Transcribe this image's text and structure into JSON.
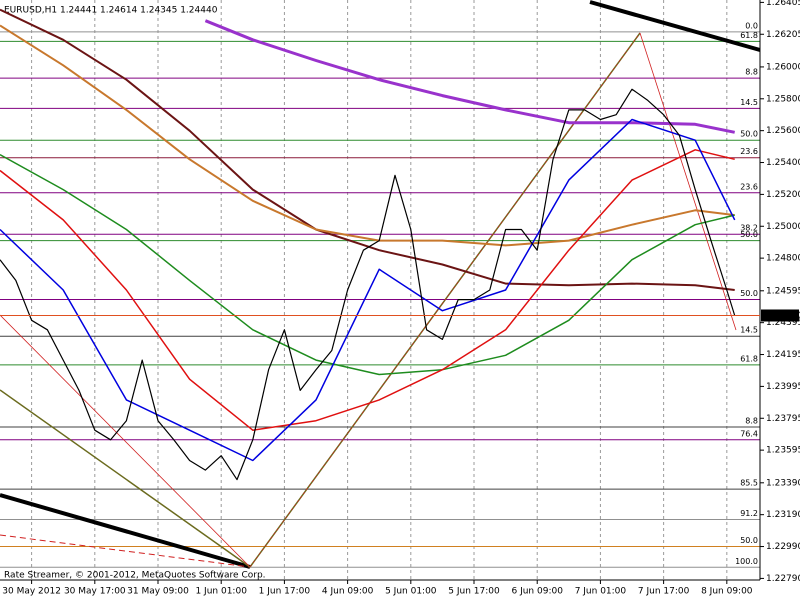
{
  "chart_data": {
    "type": "line",
    "title": "EURUSD,H1  1.24441 1.24614 1.24345 1.24440",
    "footer": "Rate Streamer, © 2001-2012, MetaQuotes Software Corp.",
    "xlim": [
      0,
      192.4
    ],
    "ylim": [
      1.2278,
      1.2642
    ],
    "grid": true,
    "xticks": [
      {
        "value": 8,
        "label": "30 May 2012"
      },
      {
        "value": 24,
        "label": "30 May 17:00"
      },
      {
        "value": 40,
        "label": "31 May 09:00"
      },
      {
        "value": 56,
        "label": "1 Jun 01:00"
      },
      {
        "value": 72,
        "label": "1 Jun 17:00"
      },
      {
        "value": 88,
        "label": "4 Jun 09:00"
      },
      {
        "value": 104,
        "label": "5 Jun 01:00"
      },
      {
        "value": 120,
        "label": "5 Jun 17:00"
      },
      {
        "value": 136,
        "label": "6 Jun 09:00"
      },
      {
        "value": 152,
        "label": "7 Jun 01:00"
      },
      {
        "value": 168,
        "label": "7 Jun 17:00"
      },
      {
        "value": 184,
        "label": "8 Jun 09:00"
      }
    ],
    "yticks": [
      1.26405,
      1.26205,
      {
        "value": 1.26,
        "label": "1.26000"
      },
      {
        "value": 1.258,
        "label": "1.25800"
      },
      {
        "value": 1.256,
        "label": "1.25600"
      },
      {
        "value": 1.254,
        "label": "1.25400"
      },
      {
        "value": 1.252,
        "label": "1.25200"
      },
      {
        "value": 1.25,
        "label": "1.25000"
      },
      {
        "value": 1.248,
        "label": "1.24800"
      },
      1.24595,
      1.24395,
      1.24195,
      1.23995,
      1.23795,
      1.23595,
      {
        "value": 1.2339,
        "label": "1.23390"
      },
      {
        "value": 1.2319,
        "label": "1.23190"
      },
      {
        "value": 1.2299,
        "label": "1.22990"
      },
      {
        "value": 1.2279,
        "label": "1.22790"
      }
    ],
    "last": {
      "value": 1.2444,
      "label": "1.24440"
    },
    "levels": [
      {
        "label": "0.0",
        "value": 1.2622,
        "color": "#909090"
      },
      {
        "label": "61.8",
        "value": 1.2616,
        "color": "#2e8b2e"
      },
      {
        "label": "8.8",
        "value": 1.2593,
        "color": "#800080"
      },
      {
        "label": "14.5",
        "value": 1.2574,
        "color": "#800080"
      },
      {
        "label": "50.0",
        "value": 1.2554,
        "color": "#2e8b2e"
      },
      {
        "label": "23.6",
        "value": 1.2543,
        "color": "#8b1a3a"
      },
      {
        "label": "23.6",
        "value": 1.2521,
        "color": "#800080"
      },
      {
        "label": "38.2",
        "value": 1.2495,
        "color": "#800080"
      },
      {
        "label": "50.0",
        "value": 1.2491,
        "color": "#2e8b2e"
      },
      {
        "label": "50.0",
        "value": 1.2454,
        "color": "#800080"
      },
      {
        "label": "14.5",
        "value": 1.2431,
        "color": "#404040"
      },
      {
        "label": "61.8",
        "value": 1.2413,
        "color": "#2e8b2e"
      },
      {
        "label": "8.8",
        "value": 1.2374,
        "color": "#404040"
      },
      {
        "label": "76.4",
        "value": 1.2366,
        "color": "#800080"
      },
      {
        "label": "85.5",
        "value": 1.2335,
        "color": "#404040"
      },
      {
        "label": "91.2",
        "value": 1.2316,
        "color": "#909090"
      },
      {
        "label": "50.0",
        "value": 1.2299,
        "color": "#d08020"
      },
      {
        "label": "100.0",
        "value": 1.2286,
        "color": "#909090"
      }
    ],
    "series": [
      {
        "color": "#9932cc",
        "width": 3,
        "x": [
          52,
          64,
          80,
          96,
          112,
          128,
          144,
          160,
          176,
          186
        ],
        "values": [
          1.2629,
          1.2617,
          1.2604,
          1.2592,
          1.2582,
          1.2573,
          1.2565,
          1.2565,
          1.2564,
          1.2559
        ]
      },
      {
        "color": "#6b1414",
        "width": 2,
        "x": [
          0,
          16,
          32,
          48,
          64,
          80,
          96,
          112,
          128,
          144,
          160,
          176,
          186
        ],
        "values": [
          1.2636,
          1.2617,
          1.2592,
          1.256,
          1.2523,
          1.2498,
          1.2485,
          1.2476,
          1.2464,
          1.2463,
          1.2464,
          1.2463,
          1.246
        ]
      },
      {
        "color": "#c8782d",
        "width": 2,
        "x": [
          0,
          16,
          32,
          48,
          64,
          80,
          96,
          112,
          128,
          144,
          160,
          176,
          186
        ],
        "values": [
          1.2626,
          1.2601,
          1.2573,
          1.2542,
          1.2516,
          1.2498,
          1.2491,
          1.2491,
          1.2488,
          1.2491,
          1.2501,
          1.251,
          1.2507
        ]
      },
      {
        "color": "#1e8c1e",
        "width": 1.5,
        "x": [
          0,
          16,
          32,
          48,
          64,
          80,
          96,
          112,
          128,
          144,
          160,
          176,
          186
        ],
        "values": [
          1.2545,
          1.2523,
          1.2498,
          1.2466,
          1.2435,
          1.2416,
          1.2407,
          1.241,
          1.2419,
          1.2441,
          1.2479,
          1.2501,
          1.2507
        ]
      },
      {
        "color": "#e01010",
        "width": 1.5,
        "x": [
          0,
          16,
          32,
          48,
          64,
          80,
          96,
          112,
          128,
          144,
          160,
          176,
          186
        ],
        "values": [
          1.2535,
          1.2504,
          1.246,
          1.2404,
          1.2372,
          1.2378,
          1.2391,
          1.241,
          1.2435,
          1.2485,
          1.2529,
          1.2548,
          1.2542
        ]
      },
      {
        "color": "#0000e0",
        "width": 1.5,
        "x": [
          0,
          16,
          32,
          48,
          64,
          80,
          96,
          112,
          128,
          144,
          160,
          176,
          186
        ],
        "values": [
          1.2498,
          1.246,
          1.2391,
          1.2372,
          1.2353,
          1.2391,
          1.2473,
          1.2447,
          1.246,
          1.2529,
          1.2567,
          1.2554,
          1.2504
        ]
      },
      {
        "color": "#000000",
        "width": 1.2,
        "x": [
          0,
          4,
          8,
          12,
          16,
          20,
          24,
          28,
          32,
          36,
          40,
          44,
          48,
          52,
          56,
          60,
          64,
          68,
          72,
          76,
          80,
          84,
          88,
          92,
          96,
          100,
          104,
          108,
          112,
          116,
          120,
          124,
          128,
          132,
          136,
          140,
          144,
          148,
          152,
          156,
          160,
          164,
          168,
          172,
          176,
          180,
          184,
          186
        ],
        "values": [
          1.2479,
          1.2466,
          1.2441,
          1.2435,
          1.2416,
          1.2397,
          1.2372,
          1.2366,
          1.2378,
          1.2416,
          1.2378,
          1.2366,
          1.2353,
          1.2347,
          1.2356,
          1.2341,
          1.2366,
          1.241,
          1.2435,
          1.2397,
          1.241,
          1.2422,
          1.246,
          1.2485,
          1.2491,
          1.2532,
          1.2498,
          1.2435,
          1.2429,
          1.2454,
          1.2454,
          1.246,
          1.2498,
          1.2498,
          1.2485,
          1.2542,
          1.2573,
          1.2573,
          1.2567,
          1.257,
          1.2586,
          1.2579,
          1.257,
          1.2557,
          1.2523,
          1.2491,
          1.246,
          1.2444
        ]
      }
    ]
  }
}
